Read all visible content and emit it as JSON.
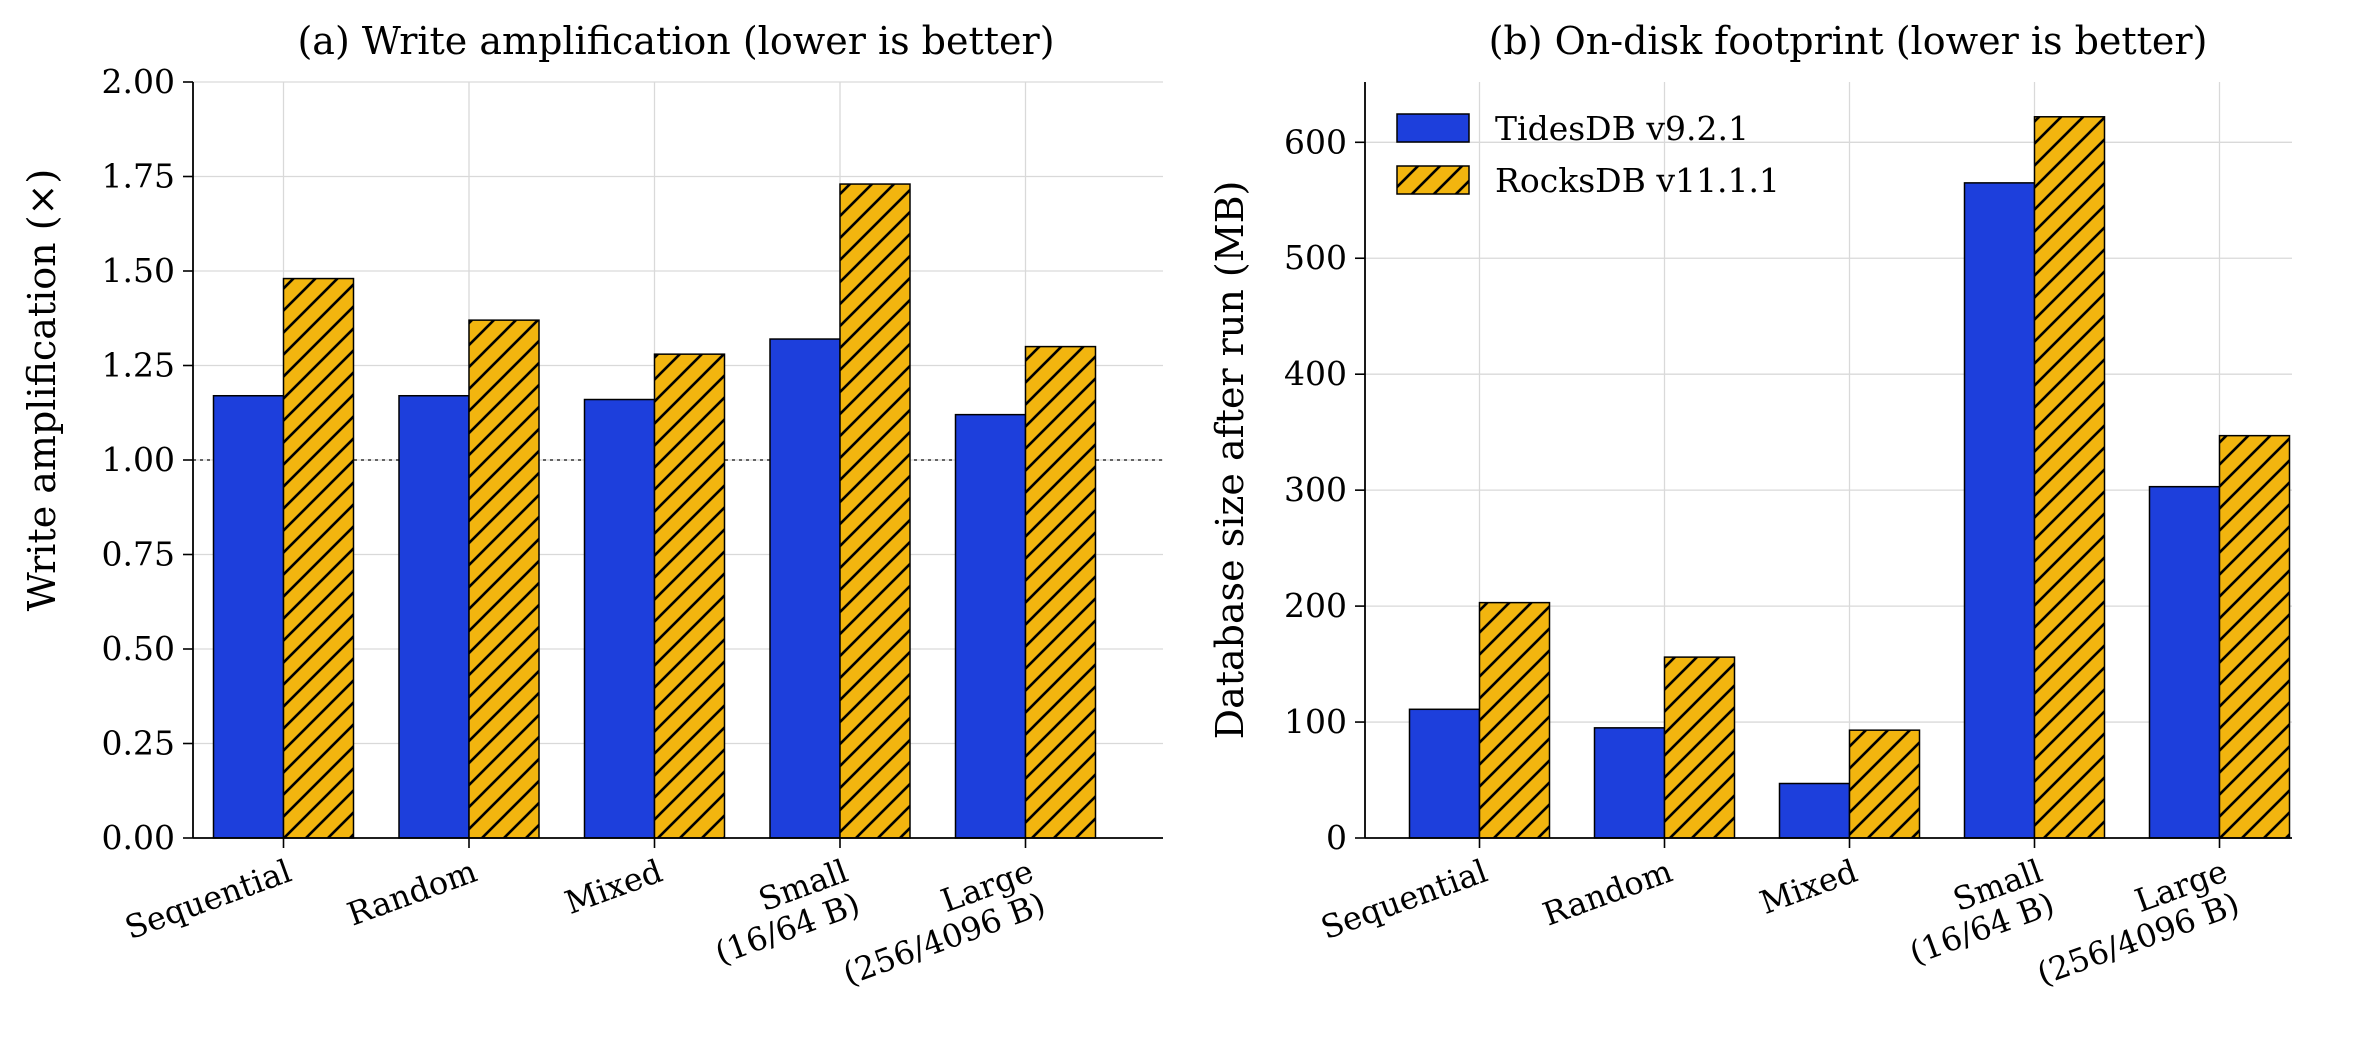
{
  "colors": {
    "tidesdb": "#1d3fdc",
    "rocksdb": "#f2b50f",
    "edge": "#000000",
    "grid": "#d9d9d9"
  },
  "legend": {
    "placement": "upper-left",
    "items": [
      "TidesDB v9.2.1",
      "RocksDB v11.1.1"
    ]
  },
  "chart_data": [
    {
      "type": "bar",
      "title": "(a) Write amplification (lower is better)",
      "ylabel": "Write amplification (×)",
      "xlabel": "",
      "ylim": [
        0,
        2.0
      ],
      "yticks": [
        "0.00",
        "0.25",
        "0.50",
        "0.75",
        "1.00",
        "1.25",
        "1.50",
        "1.75",
        "2.00"
      ],
      "ytick_values": [
        0,
        0.25,
        0.5,
        0.75,
        1.0,
        1.25,
        1.5,
        1.75,
        2.0
      ],
      "reference_line": 1.0,
      "grid": true,
      "categories": [
        [
          "Sequential"
        ],
        [
          "Random"
        ],
        [
          "Mixed"
        ],
        [
          "Small",
          "(16/64 B)"
        ],
        [
          "Large",
          "(256/4096 B)"
        ]
      ],
      "series": [
        {
          "name": "TidesDB v9.2.1",
          "values": [
            1.17,
            1.17,
            1.16,
            1.32,
            1.12
          ]
        },
        {
          "name": "RocksDB v11.1.1",
          "values": [
            1.48,
            1.37,
            1.28,
            1.73,
            1.3
          ]
        }
      ]
    },
    {
      "type": "bar",
      "title": "(b) On-disk footprint (lower is better)",
      "ylabel": "Database size after run (MB)",
      "xlabel": "",
      "ylim": [
        0,
        652
      ],
      "yticks": [
        "0",
        "100",
        "200",
        "300",
        "400",
        "500",
        "600"
      ],
      "ytick_values": [
        0,
        100,
        200,
        300,
        400,
        500,
        600
      ],
      "grid": true,
      "categories": [
        [
          "Sequential"
        ],
        [
          "Random"
        ],
        [
          "Mixed"
        ],
        [
          "Small",
          "(16/64 B)"
        ],
        [
          "Large",
          "(256/4096 B)"
        ]
      ],
      "series": [
        {
          "name": "TidesDB v9.2.1",
          "values": [
            111,
            95,
            47,
            565,
            303
          ]
        },
        {
          "name": "RocksDB v11.1.1",
          "values": [
            203,
            156,
            93,
            622,
            347
          ]
        }
      ]
    }
  ]
}
